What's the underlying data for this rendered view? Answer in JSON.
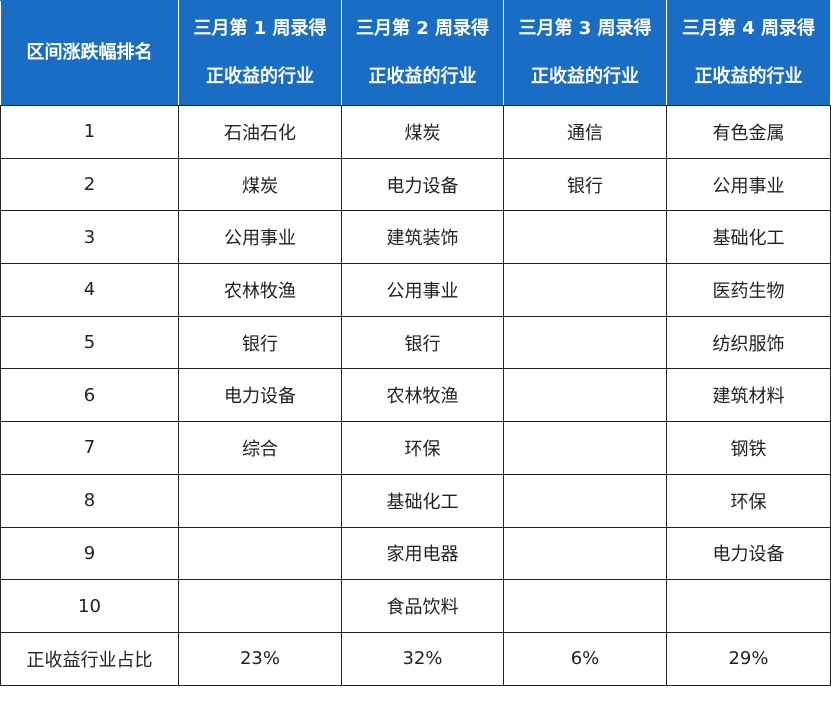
{
  "table": {
    "header": [
      [
        "区间涨跌幅排名"
      ],
      [
        "三月第 1 周录得",
        "正收益的行业"
      ],
      [
        "三月第 2 周录得",
        "正收益的行业"
      ],
      [
        "三月第 3 周录得",
        "正收益的行业"
      ],
      [
        "三月第 4 周录得",
        "正收益的行业"
      ]
    ],
    "rows": [
      [
        "1",
        "石油石化",
        "煤炭",
        "通信",
        "有色金属"
      ],
      [
        "2",
        "煤炭",
        "电力设备",
        "银行",
        "公用事业"
      ],
      [
        "3",
        "公用事业",
        "建筑装饰",
        null,
        "基础化工"
      ],
      [
        "4",
        "农林牧渔",
        "公用事业",
        null,
        "医药生物"
      ],
      [
        "5",
        "银行",
        "银行",
        null,
        "纺织服饰"
      ],
      [
        "6",
        "电力设备",
        "农林牧渔",
        null,
        "建筑材料"
      ],
      [
        "7",
        "综合",
        "环保",
        null,
        "钢铁"
      ],
      [
        "8",
        null,
        "基础化工",
        null,
        "环保"
      ],
      [
        "9",
        null,
        "家用电器",
        null,
        "电力设备"
      ],
      [
        "10",
        null,
        "食品饮料",
        null,
        null
      ],
      [
        "正收益行业占比",
        "23%",
        "32%",
        "6%",
        "29%"
      ]
    ]
  }
}
